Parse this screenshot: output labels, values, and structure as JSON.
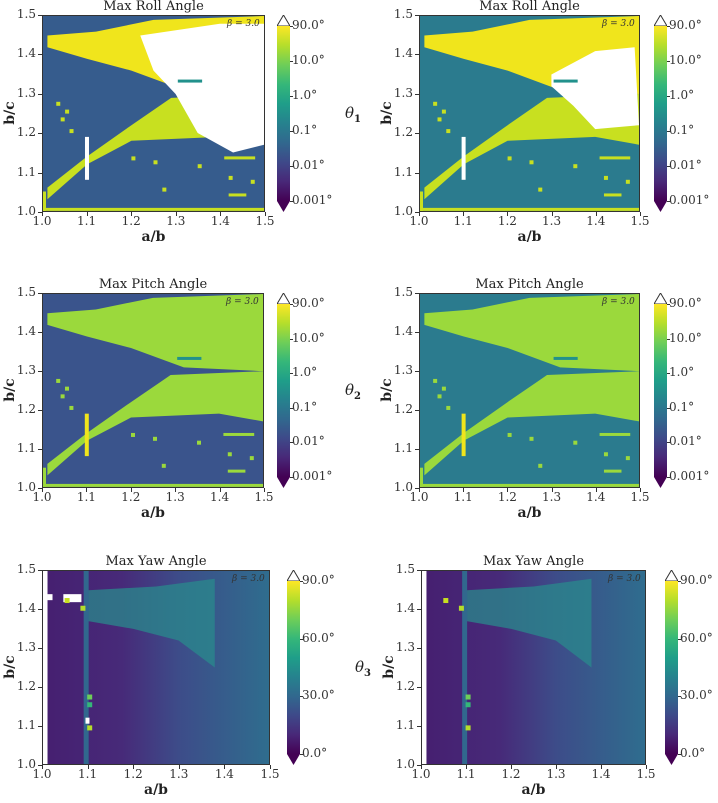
{
  "figure": {
    "panels": [
      {
        "id": "roll-left",
        "title": "Max Roll Angle",
        "annotation": "β = 3.0",
        "xlabel": "a/b",
        "ylabel": "b/c",
        "cbar_symbol": "θ",
        "cbar_sub": "1",
        "cbar_ticks": [
          "90.0°",
          "10.0°",
          "1.0°",
          "0.1°",
          "0.01°",
          "0.001°"
        ]
      },
      {
        "id": "roll-right",
        "title": "Max Roll Angle",
        "annotation": "β = 3.0",
        "xlabel": "a/b",
        "ylabel": "b/c",
        "cbar_symbol": "θ",
        "cbar_sub": "1",
        "cbar_ticks": [
          "90.0°",
          "10.0°",
          "1.0°",
          "0.1°",
          "0.01°",
          "0.001°"
        ]
      },
      {
        "id": "pitch-left",
        "title": "Max Pitch Angle",
        "annotation": "β = 3.0",
        "xlabel": "a/b",
        "ylabel": "b/c",
        "cbar_symbol": "θ",
        "cbar_sub": "2",
        "cbar_ticks": [
          "90.0°",
          "10.0°",
          "1.0°",
          "0.1°",
          "0.01°",
          "0.001°"
        ]
      },
      {
        "id": "pitch-right",
        "title": "Max Pitch Angle",
        "annotation": "β = 3.0",
        "xlabel": "a/b",
        "ylabel": "b/c",
        "cbar_symbol": "θ",
        "cbar_sub": "2",
        "cbar_ticks": [
          "90.0°",
          "10.0°",
          "1.0°",
          "0.1°",
          "0.01°",
          "0.001°"
        ]
      },
      {
        "id": "yaw-left",
        "title": "Max Yaw Angle",
        "annotation": "β = 3.0",
        "xlabel": "a/b",
        "ylabel": "b/c",
        "cbar_symbol": "θ",
        "cbar_sub": "3",
        "cbar_ticks": [
          "90.0°",
          "60.0°",
          "30.0°",
          "0.0°"
        ]
      },
      {
        "id": "yaw-right",
        "title": "Max Yaw Angle",
        "annotation": "β = 3.0",
        "xlabel": "a/b",
        "ylabel": "b/c",
        "cbar_symbol": "θ",
        "cbar_sub": "3",
        "cbar_ticks": [
          "90.0°",
          "60.0°",
          "30.0°",
          "0.0°"
        ]
      }
    ],
    "xticks": [
      "1.0",
      "1.1",
      "1.2",
      "1.3",
      "1.4",
      "1.5"
    ],
    "yticks": [
      "1.5",
      "1.4",
      "1.3",
      "1.2",
      "1.1",
      "1.0"
    ]
  },
  "colors": {
    "viridis": [
      "#440154",
      "#482878",
      "#3e4989",
      "#31688e",
      "#26828e",
      "#1f9e89",
      "#35b779",
      "#6ece58",
      "#b5de2b",
      "#fde725"
    ],
    "roll_left_bg": "#365c8d",
    "roll_right_bg": "#2b7b8e",
    "pitch_left_bg": "#3a548c",
    "pitch_right_bg": "#2b7b8e",
    "high": "#c8e020",
    "highest": "#f0e51c",
    "lime": "#9bd93c",
    "unstable": "#ffffff"
  },
  "chart_data": [
    {
      "type": "heatmap",
      "title": "Max Roll Angle",
      "xlabel": "a/b",
      "ylabel": "b/c",
      "xlim": [
        1.0,
        1.5
      ],
      "ylim": [
        1.0,
        1.5
      ],
      "colorbar": {
        "label": "θ1",
        "scale": "log",
        "ticks": [
          0.001,
          0.01,
          0.1,
          1.0,
          10.0,
          90.0
        ],
        "extend": "both"
      },
      "annotation": "β = 3.0",
      "description": "Low-angle background (~0.03°) with a wedge of large roll (>10°) opening from (1.0,1.0)-(1.3,1.3) toward a/b=1.5; white (unstable/NaN) region in upper right for a/b>1.25, b/c 1.15–1.45; white vertical bar at a/b=1.1, b/c 1.08–1.19"
    },
    {
      "type": "heatmap",
      "title": "Max Roll Angle",
      "xlabel": "a/b",
      "ylabel": "b/c",
      "xlim": [
        1.0,
        1.5
      ],
      "ylim": [
        1.0,
        1.5
      ],
      "colorbar": {
        "label": "θ1",
        "scale": "log",
        "ticks": [
          0.001,
          0.01,
          0.1,
          1.0,
          10.0,
          90.0
        ],
        "extend": "both"
      },
      "annotation": "β = 3.0",
      "description": "Teal background (~0.3°); yellow wedge with smaller white region at a/b 1.3–1.5, b/c 1.2–1.43"
    },
    {
      "type": "heatmap",
      "title": "Max Pitch Angle",
      "xlabel": "a/b",
      "ylabel": "b/c",
      "xlim": [
        1.0,
        1.5
      ],
      "ylim": [
        1.0,
        1.5
      ],
      "colorbar": {
        "label": "θ2",
        "scale": "log",
        "ticks": [
          0.001,
          0.01,
          0.1,
          1.0,
          10.0,
          90.0
        ],
        "extend": "both"
      },
      "annotation": "β = 3.0",
      "description": "Low background (~0.02°); lime wedge (~20°) covering right half for b/c 1.18–1.5"
    },
    {
      "type": "heatmap",
      "title": "Max Pitch Angle",
      "xlabel": "a/b",
      "ylabel": "b/c",
      "xlim": [
        1.0,
        1.5
      ],
      "ylim": [
        1.0,
        1.5
      ],
      "colorbar": {
        "label": "θ2",
        "scale": "log",
        "ticks": [
          0.001,
          0.01,
          0.1,
          1.0,
          10.0,
          90.0
        ],
        "extend": "both"
      },
      "annotation": "β = 3.0",
      "description": "Teal background (~0.3°); lime wedge similar shape"
    },
    {
      "type": "heatmap",
      "title": "Max Yaw Angle",
      "xlabel": "a/b",
      "ylabel": "b/c",
      "xlim": [
        1.0,
        1.5
      ],
      "ylim": [
        1.0,
        1.5
      ],
      "colorbar": {
        "label": "θ3",
        "scale": "linear",
        "ticks": [
          0.0,
          30.0,
          60.0,
          90.0
        ],
        "extend": "both"
      },
      "annotation": "β = 3.0",
      "description": "Gradient from ~8° at a/b=1.0 to ~35° at a/b=1.5; band of ~45° along b/c 1.35–1.45; vertical stripe at a/b=1.1"
    },
    {
      "type": "heatmap",
      "title": "Max Yaw Angle",
      "xlabel": "a/b",
      "ylabel": "b/c",
      "xlim": [
        1.0,
        1.5
      ],
      "ylim": [
        1.0,
        1.5
      ],
      "colorbar": {
        "label": "θ3",
        "scale": "linear",
        "ticks": [
          0.0,
          30.0,
          60.0,
          90.0
        ],
        "extend": "both"
      },
      "annotation": "β = 3.0",
      "description": "Similar gradient; fewer high-value outliers"
    }
  ]
}
